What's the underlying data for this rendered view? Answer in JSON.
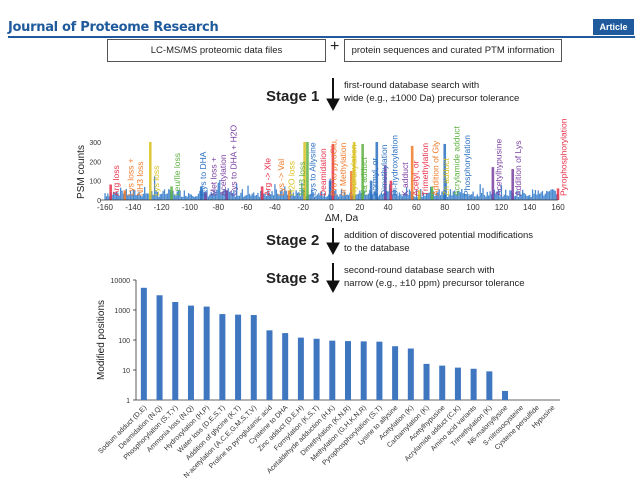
{
  "header": {
    "journal": "Journal of Proteome Research",
    "badge": "Article",
    "accent": "#1f5a9c"
  },
  "flow": {
    "input_files": "LC-MS/MS proteomic data files",
    "plus": "+",
    "input_db": "protein sequences and curated PTM information",
    "stage1": {
      "label": "Stage 1",
      "line1": "first-round database search with",
      "line2": "wide (e.g., ±1000 Da) precursor tolerance"
    },
    "stage2": {
      "label": "Stage 2",
      "line1": "addition of discovered potential modifications",
      "line2": "to the database"
    },
    "stage3": {
      "label": "Stage 3",
      "line1": "second-round database search with",
      "line2": "narrow (e.g., ±10 ppm) precursor tolerance"
    }
  },
  "chart_data": [
    {
      "type": "bar",
      "ylabel": "PSM counts",
      "xlabel": "ΔM, Da",
      "xlim": [
        -160,
        160
      ],
      "ylim": [
        0,
        300
      ],
      "xticks": [
        -160,
        -140,
        -120,
        -100,
        -80,
        -60,
        -40,
        -20,
        0,
        20,
        40,
        60,
        80,
        100,
        120,
        140,
        160
      ],
      "yticks": [
        0,
        100,
        200,
        300
      ],
      "peaks": [
        {
          "x": -156,
          "y": 80,
          "label": "Arg loss",
          "color": "#e8304a"
        },
        {
          "x": -146,
          "y": 50,
          "label": "Lys loss + NH3 loss",
          "color": "#f07a2a"
        },
        {
          "x": -128,
          "y": 300,
          "label": "Lys loss",
          "color": "#d8c020"
        },
        {
          "x": -113,
          "y": 70,
          "label": "Leu/Ile loss",
          "color": "#5cb040"
        },
        {
          "x": -92,
          "y": 70,
          "label": "Cys to DHA",
          "color": "#2a6fc0"
        },
        {
          "x": -89,
          "y": 40,
          "label": "Met loss + Acetylation",
          "color": "#7a3fa0"
        },
        {
          "x": -74,
          "y": 50,
          "label": "Cys to DHA + H2O",
          "color": "#7a3fa0"
        },
        {
          "x": -49,
          "y": 70,
          "label": "Arg -> Xle",
          "color": "#e8304a"
        },
        {
          "x": -30,
          "y": 50,
          "label": "Lys -> Val",
          "color": "#f07a2a"
        },
        {
          "x": -19,
          "y": 300,
          "label": "H2O loss",
          "color": "#d8c020"
        },
        {
          "x": -17,
          "y": 300,
          "label": "NH3 loss",
          "color": "#5cb040"
        },
        {
          "x": -1,
          "y": 100,
          "label": "Lys to Allysine",
          "color": "#2a6fc0"
        },
        {
          "x": 1,
          "y": 290,
          "label": "Deamidation",
          "color": "#e8304a"
        },
        {
          "x": 14,
          "y": 150,
          "label": "Pro to pyroGlu, or Methylation",
          "color": "#f07a2a"
        },
        {
          "x": 16,
          "y": 300,
          "label": "Hydroxylation",
          "color": "#d8c020"
        },
        {
          "x": 22,
          "y": 290,
          "label": "Na adduct",
          "color": "#5cb040"
        },
        {
          "x": 28,
          "y": 100,
          "label": "Formyl, or Dimethylation",
          "color": "#2a6fc0"
        },
        {
          "x": 32,
          "y": 300,
          "label": "Di-hydroxylation",
          "color": "#2a6fc0"
        },
        {
          "x": 38,
          "y": 180,
          "label": "K adduct",
          "color": "#7a3fa0"
        },
        {
          "x": 42,
          "y": 100,
          "label": "Acetyl, or Trimethylation",
          "color": "#e8304a"
        },
        {
          "x": 57,
          "y": 280,
          "label": "Addition of Gly",
          "color": "#f07a2a"
        },
        {
          "x": 62,
          "y": 50,
          "label": "Zn adduct",
          "color": "#d8c020"
        },
        {
          "x": 71,
          "y": 70,
          "label": "Acrylamide adduct",
          "color": "#5cb040"
        },
        {
          "x": 80,
          "y": 290,
          "label": "Phosphorylation",
          "color": "#2a6fc0"
        },
        {
          "x": 114,
          "y": 170,
          "label": "Acetylhypusine",
          "color": "#7a3fa0"
        },
        {
          "x": 128,
          "y": 160,
          "label": "Addition of Lys",
          "color": "#7a3fa0"
        },
        {
          "x": 160,
          "y": 60,
          "label": "Pyrophosphorylation",
          "color": "#e8304a"
        }
      ]
    },
    {
      "type": "bar",
      "ylabel": "Modified positions",
      "yscale": "log",
      "ylim": [
        1,
        10000
      ],
      "yticks": [
        "10000",
        "1000",
        "100",
        "10",
        "1"
      ],
      "color": "#3f76c0",
      "categories": [
        "Sodium adduct (D,E)",
        "Deamidation (N,Q)",
        "Phosphorylation (S,T,Y)",
        "Ammonia loss (N,Q)",
        "Hydroxylation (H,P)",
        "Water loss (D,E,S,T)",
        "Addition of glycine (K,T)",
        "N-acetylation (A,C,E,G,M,S,T,V)",
        "Proline to pyroglutamic acid",
        "Cysteine to DHA",
        "Zinc adduct (D,E,H)",
        "Formylation (K,S,T)",
        "Acetaldehyde adduction (H,K)",
        "Dimethylation (K,N,R)",
        "Methylation (G,H,K,N,R)",
        "Pyrophosphorylation (S,T)",
        "Lysine to allysine",
        "Acetylation (K)",
        "Carbamylation (K)",
        "Acetylhypusine",
        "Acrylamide adduct (C,K)",
        "Amino acid variants",
        "Trimethylation (K)",
        "N6-malonyllysine",
        "S-nitrosocysteine",
        "Cysteine persulfide",
        "Hypusine"
      ],
      "values": [
        5500,
        3100,
        1850,
        1400,
        1300,
        730,
        700,
        680,
        210,
        170,
        120,
        110,
        95,
        92,
        90,
        88,
        62,
        52,
        16,
        14,
        12,
        11,
        9,
        2,
        1,
        1,
        1
      ]
    }
  ]
}
